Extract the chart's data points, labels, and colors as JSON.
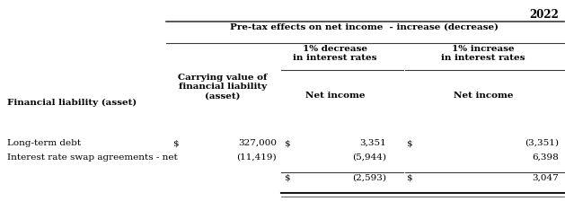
{
  "title_year": "2022",
  "header1": "Pre-tax effects on net income  - increase (decrease)",
  "col1_header": "Financial liability (asset)",
  "col2_header": "Carrying value of\nfinancial liability\n(asset)",
  "col3_header": "1% decrease\nin interest rates",
  "col4_header": "1% increase\nin interest rates",
  "col3_subheader": "Net income",
  "col4_subheader": "Net income",
  "rows": [
    {
      "label": "Long-term debt",
      "carrying_dollar": "$",
      "carrying_value": "327,000",
      "dec_dollar": "$",
      "dec_value": "3,351",
      "inc_dollar": "$",
      "inc_value": "(3,351)"
    },
    {
      "label": "Interest rate swap agreements - net",
      "carrying_dollar": "",
      "carrying_value": "(11,419)",
      "dec_dollar": "",
      "dec_value": "(5,944)",
      "inc_dollar": "",
      "inc_value": "6,398"
    }
  ],
  "total_row": {
    "dec_dollar": "$",
    "dec_value": "(2,593)",
    "inc_dollar": "$",
    "inc_value": "3,047"
  },
  "bg_color": "#ffffff",
  "text_color": "#000000",
  "font_size": 7.5,
  "line_color": "#3f3f3f"
}
